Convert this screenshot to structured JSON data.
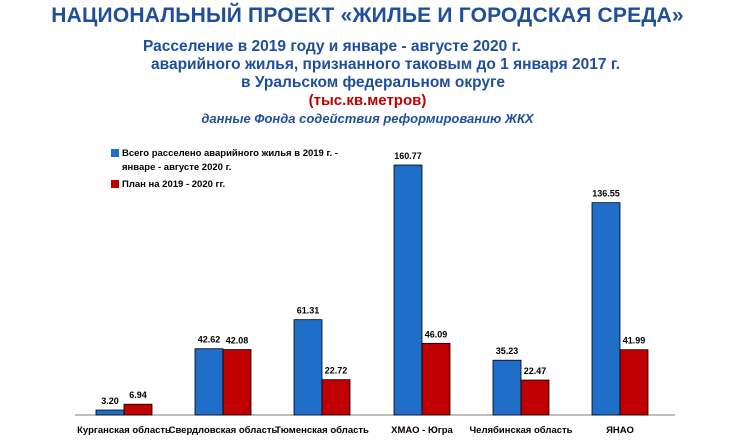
{
  "header": {
    "title": "НАЦИОНАЛЬНЫЙ ПРОЕКТ «ЖИЛЬЕ И ГОРОДСКАЯ СРЕДА»",
    "subtitle_line1": "Расселение в 2019 году и январе - августе 2020 г.",
    "subtitle_line2": "аварийного жилья, признанного таковым до 1 января 2017 г.",
    "subtitle_line3": "в Уральском федеральном округе",
    "unit": "(тыс.кв.метров)",
    "source": "данные Фонда содействия реформированию ЖКХ"
  },
  "chart_data": {
    "type": "bar",
    "title": "Расселение в 2019 году и январе - августе 2020 г. аварийного жилья, признанного таковым до 1 января 2017 г. в Уральском федеральном округе",
    "ylabel": "тыс.кв.метров",
    "ylim": [
      0,
      170
    ],
    "grid": false,
    "legend_position": "top-left",
    "categories": [
      "Курганская область",
      "Свердловская область",
      "Тюменская область",
      "ХМАО - Югра",
      "Челябинская область",
      "ЯНАО"
    ],
    "series": [
      {
        "name": "Всего расселено аварийного жилья в 2019 г. - январе - августе 2020 г.",
        "legend_line1": "Всего расселено аварийного жилья в 2019 г.  -",
        "legend_line2": "январе - августе 2020 г.",
        "color": "#1f6fc9",
        "values": [
          3.2,
          42.62,
          61.31,
          160.77,
          35.23,
          136.55
        ],
        "labels": [
          "3.20",
          "42.62",
          "61.31",
          "160.77",
          "35.23",
          "136.55"
        ]
      },
      {
        "name": "План на 2019 - 2020 гг.",
        "legend_line1": "План на 2019 - 2020 гг.",
        "color": "#c00000",
        "values": [
          6.94,
          42.08,
          22.72,
          46.09,
          22.47,
          41.99
        ],
        "labels": [
          "6.94",
          "42.08",
          "22.72",
          "46.09",
          "22.47",
          "41.99"
        ]
      }
    ]
  }
}
